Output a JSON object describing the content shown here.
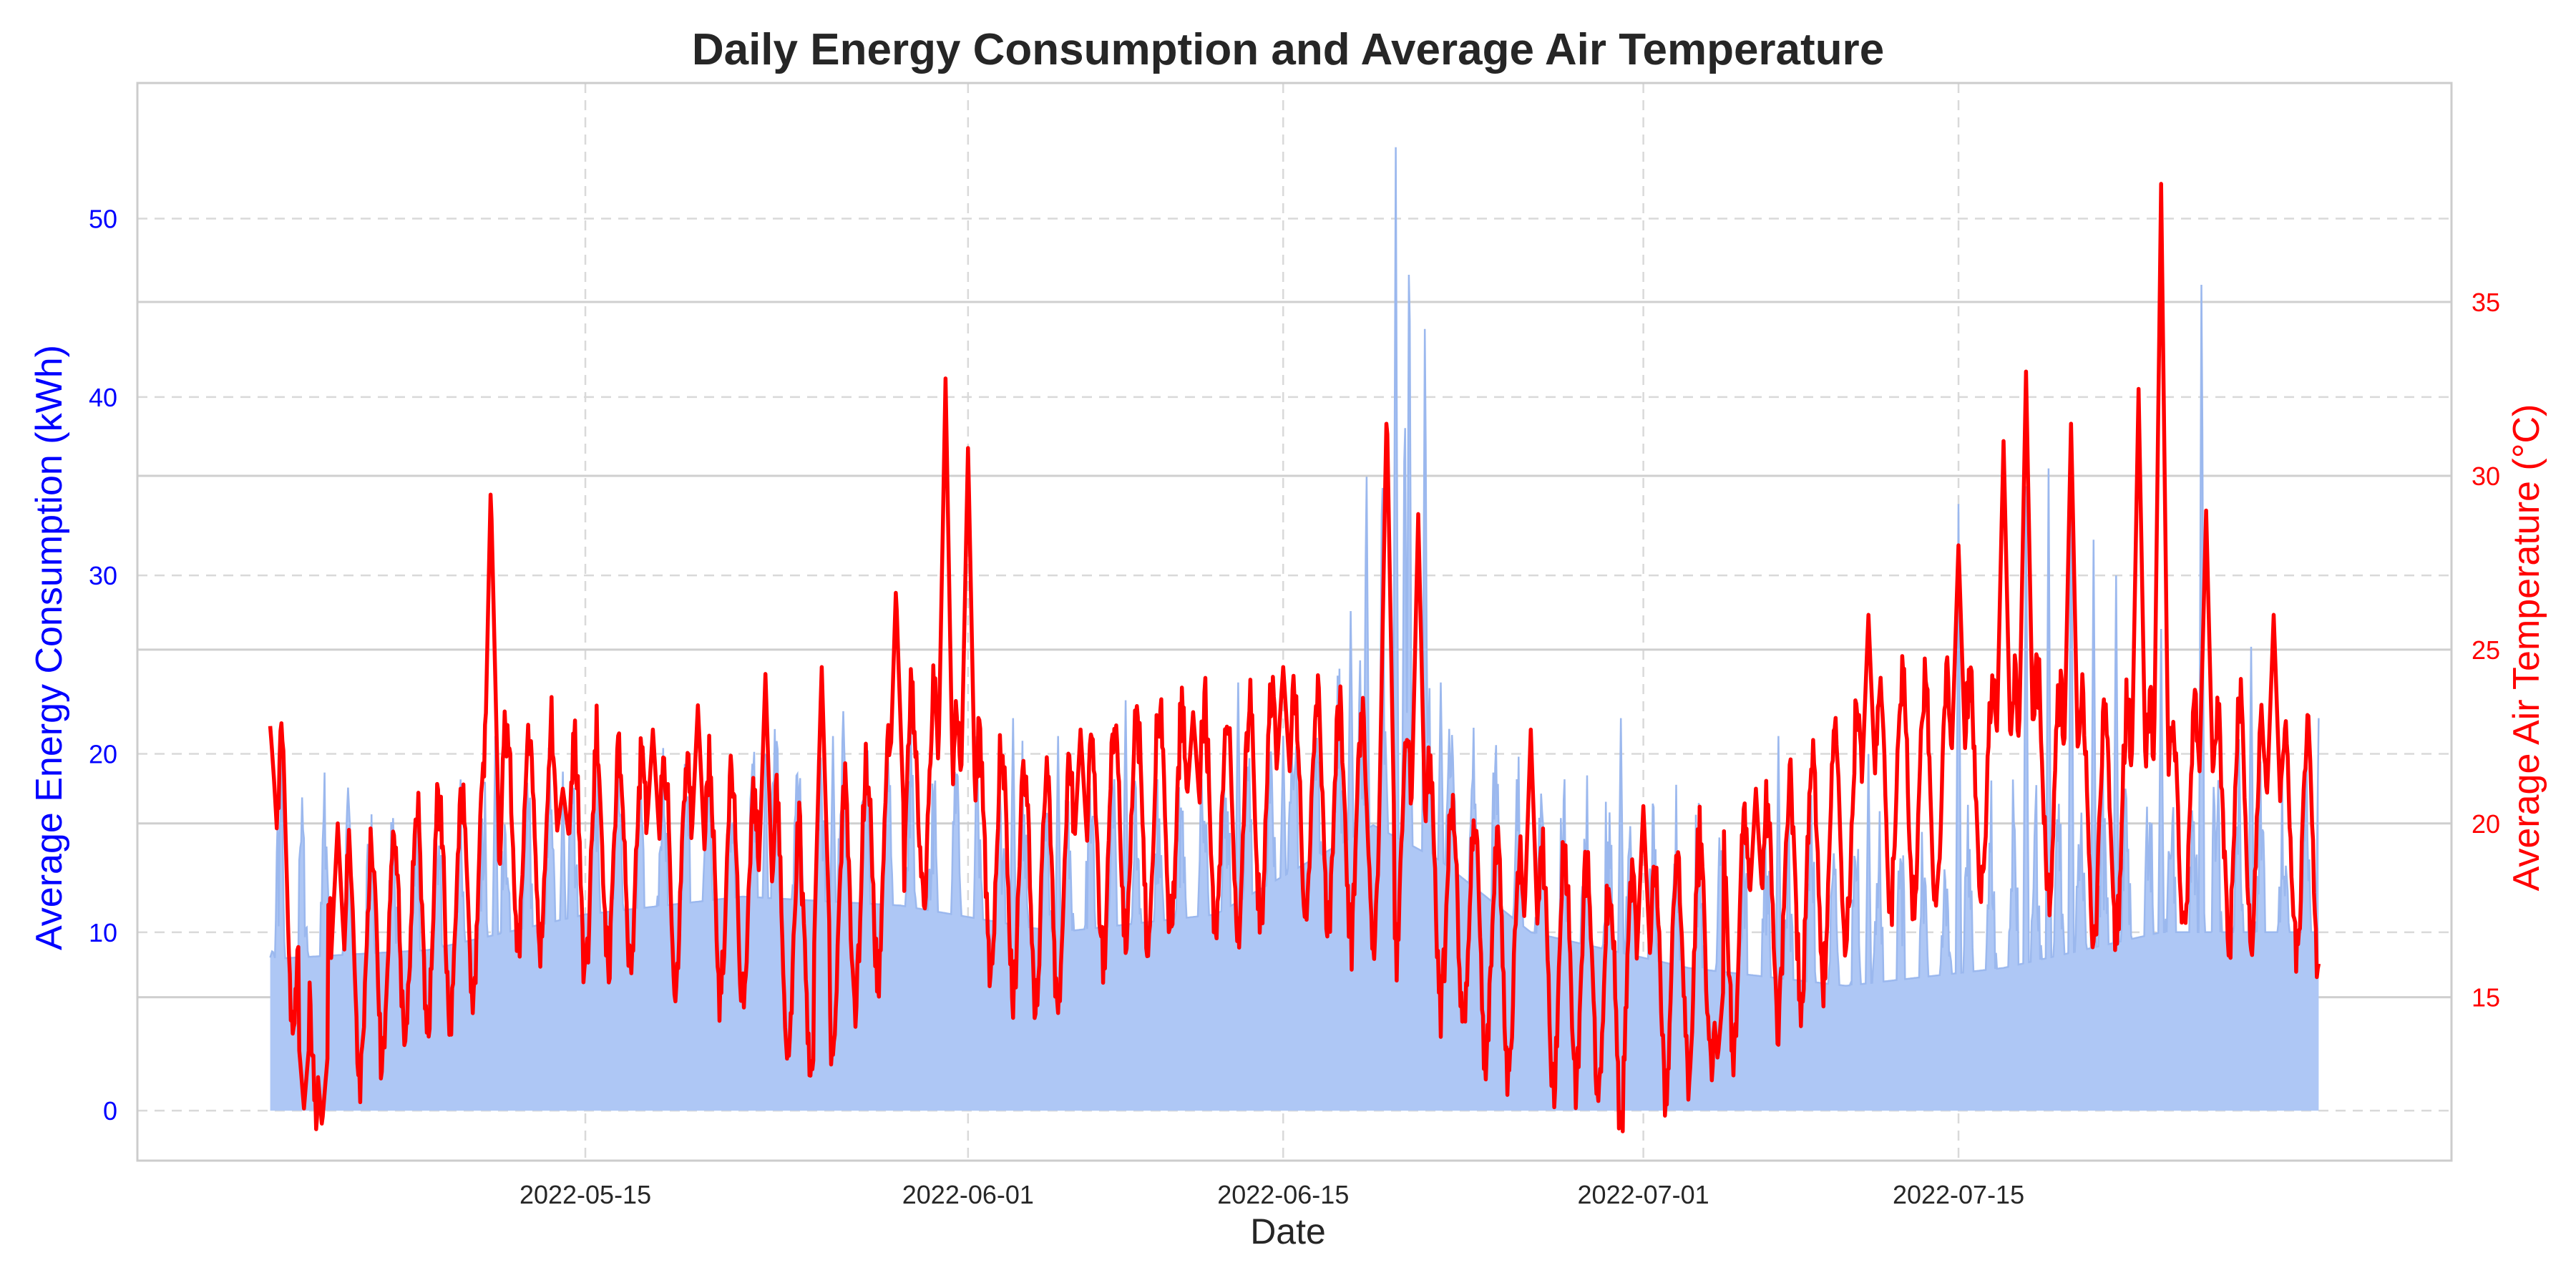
{
  "chart_data": {
    "type": "line",
    "title": "Daily Energy Consumption and Average Air Temperature",
    "xlabel": "Date",
    "ylabel_left": "Average Energy Consumption (kWh)",
    "ylabel_right": "Average Air Temperature (°C)",
    "x_range": [
      "2022-05-01",
      "2022-07-31"
    ],
    "x_ticks": [
      "2022-05-15",
      "2022-06-01",
      "2022-06-15",
      "2022-07-01",
      "2022-07-15"
    ],
    "y_left_lim": [
      -2.8,
      57.6
    ],
    "y_left_ticks": [
      0,
      10,
      20,
      30,
      40,
      50
    ],
    "y_right_lim": [
      10.3,
      41.3
    ],
    "y_right_ticks": [
      15,
      20,
      25,
      30,
      35
    ],
    "grid": true,
    "colors": {
      "energy_fill": "#aec7f5",
      "energy_line": "#9bb8ee",
      "temperature": "#ff0000",
      "left_axis": "#0000ff",
      "right_axis": "#ff0000",
      "grid": "#d9d9d9",
      "frame": "#cccccc"
    },
    "series": [
      {
        "name": "Average Energy Consumption (kWh)",
        "axis": "left",
        "style": "area",
        "daily_base": [
          [
            0,
            9.5
          ],
          [
            7,
            10
          ],
          [
            14,
            12
          ],
          [
            21,
            13
          ],
          [
            28,
            12.5
          ],
          [
            35,
            11
          ],
          [
            42,
            12
          ],
          [
            49,
            17
          ],
          [
            52,
            15
          ],
          [
            56,
            11
          ],
          [
            63,
            9
          ],
          [
            70,
            8
          ],
          [
            77,
            9
          ],
          [
            84,
            11
          ],
          [
            91,
            11
          ]
        ],
        "daily_amplitude": 9,
        "spikes": [
          [
            0.1,
            10
          ],
          [
            0.5,
            22
          ],
          [
            10,
            22
          ],
          [
            13,
            20
          ],
          [
            22,
            21
          ],
          [
            25,
            22
          ],
          [
            33,
            23
          ],
          [
            35,
            22
          ],
          [
            38,
            24
          ],
          [
            43,
            25
          ],
          [
            45,
            22
          ],
          [
            48,
            29
          ],
          [
            48.7,
            38
          ],
          [
            49.4,
            39
          ],
          [
            50,
            55
          ],
          [
            50.4,
            43
          ],
          [
            50.6,
            53
          ],
          [
            51.3,
            47
          ],
          [
            52,
            25
          ],
          [
            60,
            23
          ],
          [
            67,
            22
          ],
          [
            71,
            21
          ],
          [
            75,
            35
          ],
          [
            78,
            36
          ],
          [
            79,
            37
          ],
          [
            80,
            38
          ],
          [
            81,
            33
          ],
          [
            82,
            31
          ],
          [
            84,
            28
          ],
          [
            85.8,
            50
          ],
          [
            88,
            27
          ],
          [
            91,
            23
          ]
        ]
      },
      {
        "name": "Average Air Temperature (°C)",
        "axis": "right",
        "style": "line",
        "daily_base": [
          [
            0,
            20
          ],
          [
            2,
            15
          ],
          [
            6,
            17
          ],
          [
            9,
            18
          ],
          [
            10,
            20
          ],
          [
            14,
            19
          ],
          [
            17,
            19
          ],
          [
            21,
            18
          ],
          [
            24,
            16
          ],
          [
            26,
            18
          ],
          [
            29,
            21
          ],
          [
            32,
            19
          ],
          [
            35,
            18
          ],
          [
            38,
            20
          ],
          [
            43,
            20
          ],
          [
            45,
            21
          ],
          [
            48,
            20
          ],
          [
            51,
            19
          ],
          [
            53,
            17
          ],
          [
            55,
            16
          ],
          [
            58,
            16
          ],
          [
            60,
            15
          ],
          [
            63,
            16
          ],
          [
            66,
            17
          ],
          [
            69,
            19
          ],
          [
            72,
            21
          ],
          [
            75,
            21
          ],
          [
            77,
            21
          ],
          [
            79,
            21
          ],
          [
            81,
            20
          ],
          [
            84,
            20
          ],
          [
            88,
            20
          ],
          [
            91,
            19
          ]
        ],
        "daily_amplitude": 3.4,
        "spikes": [
          [
            0,
            22.8
          ],
          [
            1.5,
            11.8
          ],
          [
            2.3,
            11.3
          ],
          [
            3,
            20
          ],
          [
            9.8,
            29.7
          ],
          [
            13,
            21
          ],
          [
            17,
            22.7
          ],
          [
            19,
            23.4
          ],
          [
            22,
            24.3
          ],
          [
            24.5,
            24.5
          ],
          [
            27.8,
            26.8
          ],
          [
            30,
            32.8
          ],
          [
            31,
            30.8
          ],
          [
            36,
            22.7
          ],
          [
            41,
            23.2
          ],
          [
            45,
            24.5
          ],
          [
            49.6,
            32.1
          ],
          [
            51,
            28.9
          ],
          [
            56,
            22.7
          ],
          [
            61,
            20.5
          ],
          [
            64.3,
            13.2
          ],
          [
            66,
            21
          ],
          [
            71,
            26
          ],
          [
            75,
            28
          ],
          [
            77,
            31
          ],
          [
            78,
            33
          ],
          [
            80,
            31.5
          ],
          [
            83,
            32.5
          ],
          [
            84,
            38.4
          ],
          [
            86,
            29
          ],
          [
            89,
            26
          ],
          [
            91,
            18.7
          ]
        ]
      }
    ]
  }
}
